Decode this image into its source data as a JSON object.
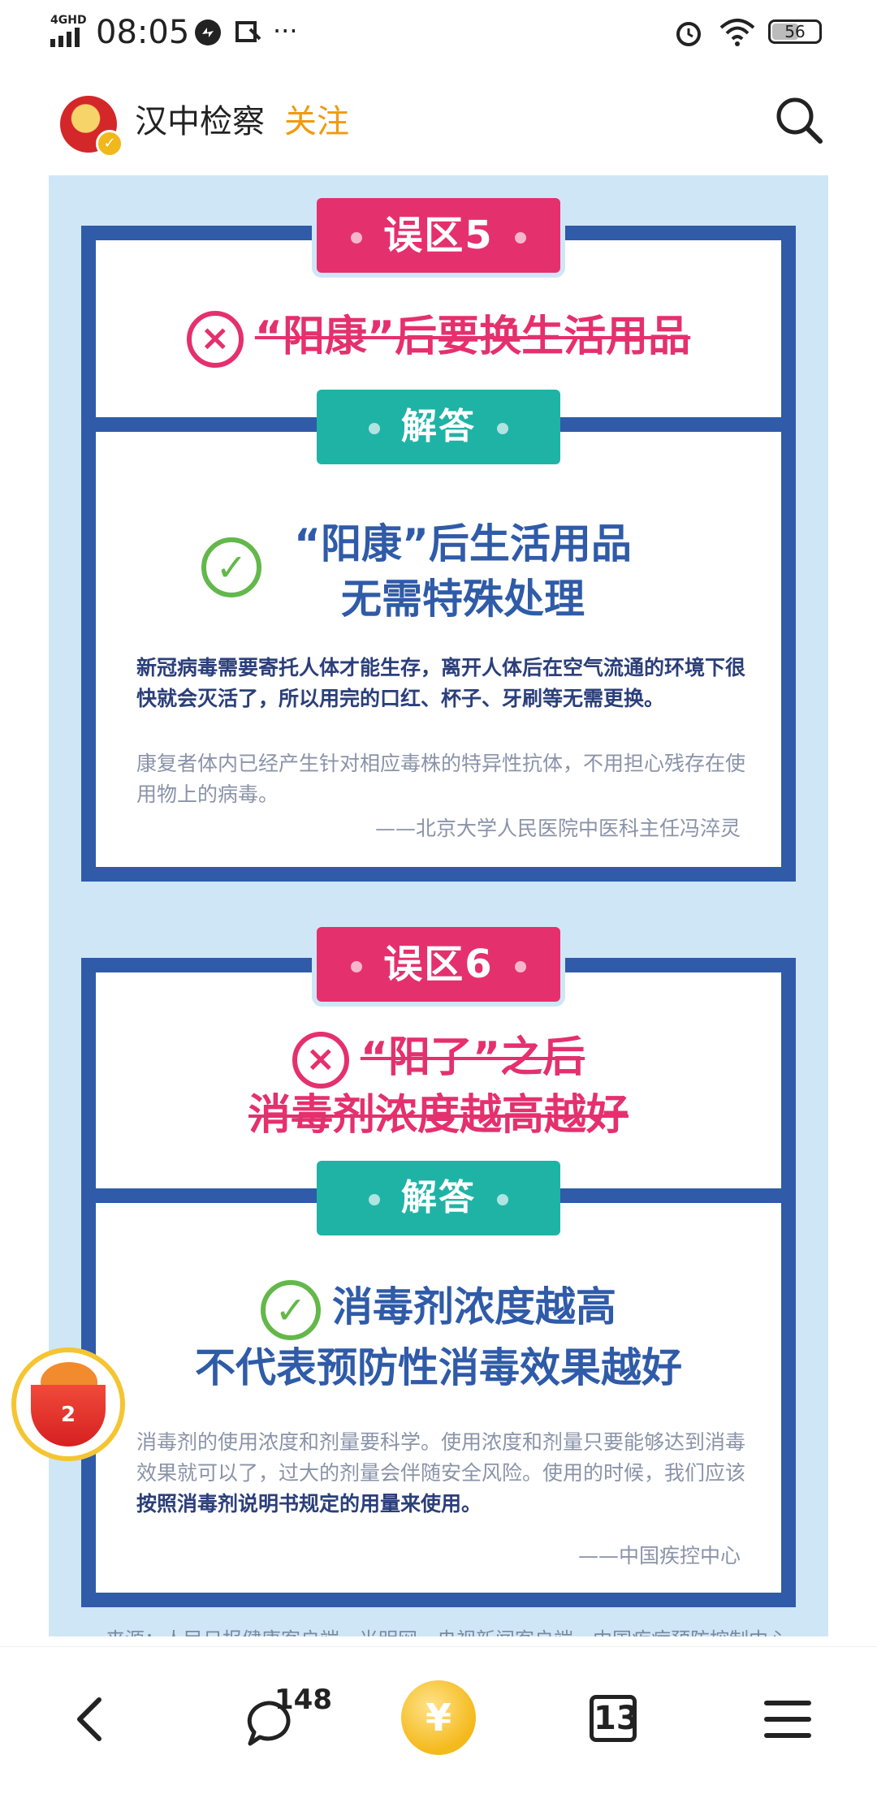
{
  "status_bar": {
    "network": "4GHD",
    "time": "08:05",
    "battery": "56"
  },
  "header": {
    "account_name": "汉中检察",
    "follow_label": "关注"
  },
  "poster": {
    "myth5": {
      "tag": "误区5",
      "claim": "“阳康”后要换生活用品",
      "answer_tag": "解答",
      "answer_line1": "“阳康”后生活用品",
      "answer_line2": "无需特殊处理",
      "body_dark": "新冠病毒需要寄托人体才能生存，离开人体后在空气流通的环境下很快就会灭活了，所以用完的口红、杯子、牙刷等无需更换。",
      "body_grey": "康复者体内已经产生针对相应毒株的特异性抗体，不用担心残存在使用物上的病毒。",
      "source": "——北京大学人民医院中医科主任冯淬灵"
    },
    "myth6": {
      "tag": "误区6",
      "claim_line1": "“阳了”之后",
      "claim_line2": "消毒剂浓度越高越好",
      "answer_tag": "解答",
      "answer_line1": "消毒剂浓度越高",
      "answer_line2": "不代表预防性消毒效果越好",
      "body_grey": "消毒剂的使用浓度和剂量要科学。使用浓度和剂量只要能够达到消毒效果就可以了，过大的剂量会伴随安全风险。使用的时候，我们应该",
      "body_dark": "按照消毒剂说明书规定的用量来使用。",
      "source": "——中国疾控中心"
    },
    "footnote": "来源：人民日报健康客户端、光明网、央视新闻客户端、中国疾病预防控制中心"
  },
  "float_badge": {
    "count": "2"
  },
  "bottom_nav": {
    "comment_count": "148",
    "coin_symbol": "¥",
    "tabs_count": "13"
  },
  "colors": {
    "poster_bg": "#cfe6f7",
    "panel_border": "#2f5ba8",
    "myth_pink": "#e5306e",
    "answer_teal": "#1fb3a6",
    "check_green": "#63b84a",
    "follow_orange": "#f19a0e"
  },
  "icons": [
    "signal-icon",
    "sync-icon",
    "alarm-icon",
    "wifi-icon",
    "battery-icon",
    "search-icon",
    "back-icon",
    "comment-icon",
    "coin-icon",
    "tabs-icon",
    "menu-icon"
  ]
}
